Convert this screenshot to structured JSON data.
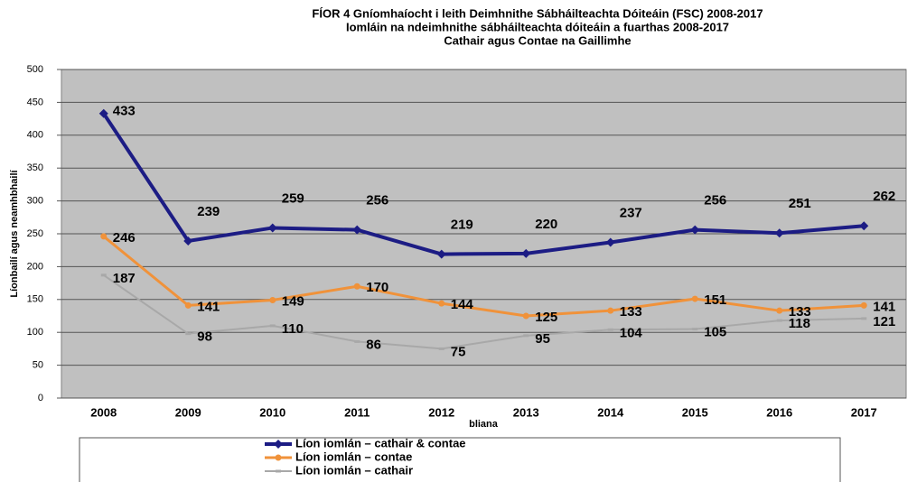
{
  "chart_data": {
    "type": "line",
    "title": "FÍOR 4  Gníomhaíocht i leith Deimhnithe Sábháilteachta Dóiteáin (FSC) 2008-2017",
    "subtitle": [
      "Iomláin na ndeimhnithe sábháilteachta dóiteáin a fuarthas 2008-2017",
      "Cathair agus Contae na Gaillimhe"
    ],
    "x_label": "bliana",
    "y_label": "Líonbailí agus neamhbhailí",
    "categories": [
      "2008",
      "2009",
      "2010",
      "2011",
      "2012",
      "2013",
      "2014",
      "2015",
      "2016",
      "2017"
    ],
    "series": [
      {
        "name": "Líon iomlán – cathair & contae",
        "color": "#1c1c84",
        "values": [
          433,
          239,
          259,
          256,
          219,
          220,
          237,
          256,
          251,
          262
        ]
      },
      {
        "name": "Líon iomlán – contae",
        "color": "#f0923a",
        "values": [
          246,
          141,
          149,
          170,
          144,
          125,
          133,
          151,
          133,
          141
        ]
      },
      {
        "name": "Líon iomlán – cathair",
        "color": "#a8a8a8",
        "values": [
          187,
          98,
          110,
          86,
          75,
          95,
          104,
          105,
          118,
          121
        ]
      }
    ],
    "ylim": [
      0,
      500
    ],
    "yticks": [
      0,
      50,
      100,
      150,
      200,
      250,
      300,
      350,
      400,
      450,
      500
    ],
    "grid": true,
    "legend": "bottom"
  }
}
